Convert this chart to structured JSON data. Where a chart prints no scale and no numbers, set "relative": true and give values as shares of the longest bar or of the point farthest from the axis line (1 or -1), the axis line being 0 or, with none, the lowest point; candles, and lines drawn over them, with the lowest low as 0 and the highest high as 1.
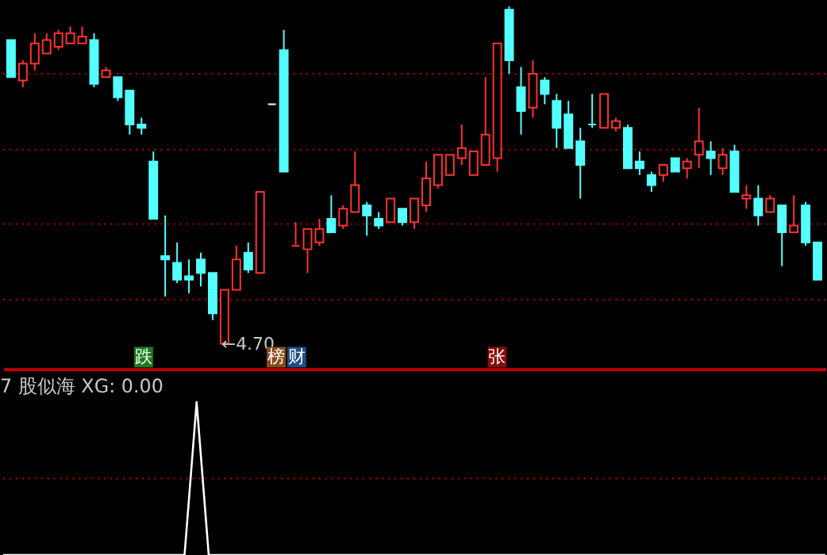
{
  "chart_data": [
    {
      "type": "candlestick",
      "relative": true,
      "tick_labels": false,
      "categories": [
        null,
        null,
        null,
        null,
        null,
        null,
        null,
        null,
        null,
        null,
        null,
        null,
        null,
        null,
        null,
        null,
        null,
        null,
        null,
        null,
        null,
        null,
        null,
        null,
        null,
        null,
        null,
        null,
        null,
        null,
        null,
        null,
        null,
        null,
        null,
        null,
        null,
        null,
        null,
        null,
        null,
        null,
        null,
        null,
        null,
        null,
        null,
        null,
        null,
        null,
        null,
        null,
        null,
        null,
        null,
        null,
        null,
        null,
        null,
        null,
        null,
        null,
        null,
        null,
        null,
        null,
        null,
        null,
        null
      ],
      "ohlc": [
        [
          0.9,
          0.9,
          0.79,
          0.79
        ],
        [
          0.78,
          0.84,
          0.76,
          0.83
        ],
        [
          0.83,
          0.92,
          0.81,
          0.89
        ],
        [
          0.86,
          0.92,
          0.86,
          0.9
        ],
        [
          0.88,
          0.93,
          0.87,
          0.92
        ],
        [
          0.89,
          0.94,
          0.89,
          0.92
        ],
        [
          0.89,
          0.94,
          0.89,
          0.91
        ],
        [
          0.9,
          0.92,
          0.76,
          0.77
        ],
        [
          0.79,
          0.82,
          0.79,
          0.81
        ],
        [
          0.79,
          0.79,
          0.72,
          0.73
        ],
        [
          0.75,
          0.75,
          0.62,
          0.65
        ],
        [
          0.65,
          0.67,
          0.62,
          0.64
        ],
        [
          0.54,
          0.57,
          0.37,
          0.37
        ],
        [
          0.26,
          0.38,
          0.14,
          0.25
        ],
        [
          0.24,
          0.3,
          0.18,
          0.19
        ],
        [
          0.2,
          0.25,
          0.15,
          0.19
        ],
        [
          0.25,
          0.27,
          0.17,
          0.21
        ],
        [
          0.21,
          0.21,
          0.07,
          0.09
        ],
        [
          0,
          0.16,
          0,
          0.16
        ],
        [
          0.16,
          0.29,
          0.16,
          0.25
        ],
        [
          0.27,
          0.3,
          0.21,
          0.22
        ],
        [
          0.21,
          0.45,
          0.21,
          0.45
        ],
        [
          0.71,
          0.71,
          0.71,
          0.71
        ],
        [
          0.87,
          0.93,
          0.51,
          0.51
        ],
        [
          0.29,
          0.36,
          0.29,
          0.29
        ],
        [
          0.28,
          0.34,
          0.21,
          0.34
        ],
        [
          0.3,
          0.37,
          0.29,
          0.34
        ],
        [
          0.37,
          0.44,
          0.33,
          0.33
        ],
        [
          0.35,
          0.41,
          0.34,
          0.4
        ],
        [
          0.39,
          0.57,
          0.39,
          0.47
        ],
        [
          0.41,
          0.42,
          0.32,
          0.38
        ],
        [
          0.37,
          0.39,
          0.34,
          0.35
        ],
        [
          0.36,
          0.43,
          0.36,
          0.43
        ],
        [
          0.4,
          0.4,
          0.35,
          0.36
        ],
        [
          0.36,
          0.43,
          0.34,
          0.43
        ],
        [
          0.41,
          0.54,
          0.39,
          0.49
        ],
        [
          0.47,
          0.56,
          0.46,
          0.56
        ],
        [
          0.5,
          0.56,
          0.5,
          0.56
        ],
        [
          0.55,
          0.65,
          0.53,
          0.58
        ],
        [
          0.5,
          0.57,
          0.5,
          0.57
        ],
        [
          0.53,
          0.79,
          0.53,
          0.62
        ],
        [
          0.55,
          0.89,
          0.51,
          0.89
        ],
        [
          0.99,
          1.0,
          0.8,
          0.84
        ],
        [
          0.76,
          0.82,
          0.62,
          0.69
        ],
        [
          0.7,
          0.84,
          0.67,
          0.8
        ],
        [
          0.78,
          0.79,
          0.71,
          0.74
        ],
        [
          0.72,
          0.74,
          0.58,
          0.64
        ],
        [
          0.68,
          0.72,
          0.58,
          0.58
        ],
        [
          0.6,
          0.64,
          0.43,
          0.53
        ],
        [
          0.65,
          0.74,
          0.64,
          0.65
        ],
        [
          0.64,
          0.74,
          0.64,
          0.74
        ],
        [
          0.64,
          0.67,
          0.63,
          0.66
        ],
        [
          0.64,
          0.65,
          0.52,
          0.52
        ],
        [
          0.54,
          0.57,
          0.5,
          0.52
        ],
        [
          0.5,
          0.51,
          0.45,
          0.47
        ],
        [
          0.5,
          0.53,
          0.48,
          0.53
        ],
        [
          0.55,
          0.55,
          0.51,
          0.51
        ],
        [
          0.52,
          0.55,
          0.49,
          0.54
        ],
        [
          0.56,
          0.7,
          0.52,
          0.6
        ],
        [
          0.57,
          0.6,
          0.5,
          0.55
        ],
        [
          0.52,
          0.58,
          0.5,
          0.56
        ],
        [
          0.57,
          0.59,
          0.45,
          0.45
        ],
        [
          0.43,
          0.47,
          0.4,
          0.44
        ],
        [
          0.43,
          0.47,
          0.35,
          0.38
        ],
        [
          0.39,
          0.44,
          0.39,
          0.43
        ],
        [
          0.41,
          0.41,
          0.23,
          0.33
        ],
        [
          0.33,
          0.44,
          0.33,
          0.35
        ],
        [
          0.41,
          0.42,
          0.29,
          0.3
        ],
        [
          0.3,
          0.3,
          0.19,
          0.19
        ]
      ],
      "colors": [
        "#54ffff",
        "#ff3232",
        "#ff3232",
        "#ff3232",
        "#ff3232",
        "#ff3232",
        "#ff3232",
        "#54ffff",
        "#ff3232",
        "#54ffff",
        "#54ffff",
        "#54ffff",
        "#54ffff",
        "#54ffff",
        "#54ffff",
        "#54ffff",
        "#54ffff",
        "#54ffff",
        "#ff3232",
        "#ff3232",
        "#54ffff",
        "#ff3232",
        "#ffffff",
        "#54ffff",
        "#ff3232",
        "#ff3232",
        "#ff3232",
        "#54ffff",
        "#ff3232",
        "#ff3232",
        "#54ffff",
        "#54ffff",
        "#ff3232",
        "#54ffff",
        "#ff3232",
        "#ff3232",
        "#ff3232",
        "#ff3232",
        "#ff3232",
        "#ff3232",
        "#ff3232",
        "#ff3232",
        "#54ffff",
        "#54ffff",
        "#ff3232",
        "#54ffff",
        "#54ffff",
        "#54ffff",
        "#54ffff",
        "#54ffff",
        "#ff3232",
        "#ff3232",
        "#54ffff",
        "#54ffff",
        "#54ffff",
        "#ff3232",
        "#54ffff",
        "#ff3232",
        "#ff3232",
        "#54ffff",
        "#ff3232",
        "#54ffff",
        "#ff3232",
        "#54ffff",
        "#ff3232",
        "#54ffff",
        "#ff3232",
        "#54ffff",
        "#54ffff"
      ],
      "annotations": [
        "←4.70",
        "跌",
        "榜",
        "财",
        "张"
      ],
      "ref_lines": [
        {
          "axis": "y",
          "value": 0.8,
          "color": "#c00000",
          "line_style": "dotted"
        },
        {
          "axis": "y",
          "value": 0.575,
          "color": "#c00000",
          "line_style": "dotted"
        },
        {
          "axis": "y",
          "value": 0.355,
          "color": "#c00000",
          "line_style": "dotted"
        },
        {
          "axis": "y",
          "value": 0.131,
          "color": "#c00000",
          "line_style": "dotted"
        }
      ]
    },
    {
      "type": "line",
      "relative": true,
      "tick_labels": false,
      "title": "7 股似海 XG: 0.00",
      "categories": [
        null,
        null,
        null,
        null,
        null,
        null,
        null,
        null,
        null,
        null,
        null,
        null,
        null,
        null,
        null,
        null,
        null,
        null,
        null,
        null,
        null,
        null,
        null,
        null,
        null,
        null,
        null,
        null,
        null,
        null,
        null,
        null,
        null,
        null,
        null,
        null,
        null,
        null,
        null,
        null,
        null,
        null,
        null,
        null,
        null,
        null,
        null,
        null,
        null,
        null,
        null,
        null,
        null,
        null,
        null,
        null,
        null,
        null,
        null,
        null,
        null,
        null,
        null,
        null,
        null,
        null,
        null,
        null,
        null
      ],
      "series": [
        {
          "color": "#ffffff",
          "values": [
            0,
            0,
            0,
            0,
            0,
            0,
            0,
            0,
            0,
            0,
            0,
            0,
            0,
            0,
            0,
            0,
            1,
            0,
            0,
            0,
            0,
            0,
            0,
            0,
            0,
            0,
            0,
            0,
            0,
            0,
            0,
            0,
            0,
            0,
            0,
            0,
            0,
            0,
            0,
            0,
            0,
            0,
            0,
            0,
            0,
            0,
            0,
            0,
            0,
            0,
            0,
            0,
            0,
            0,
            0,
            0,
            0,
            0,
            0,
            0,
            0,
            0,
            0,
            0,
            0,
            0,
            0,
            0,
            0
          ]
        }
      ],
      "ref_lines": [
        {
          "axis": "y",
          "value": 0.5,
          "color": "#c00000",
          "line_style": "dotted"
        }
      ]
    }
  ]
}
